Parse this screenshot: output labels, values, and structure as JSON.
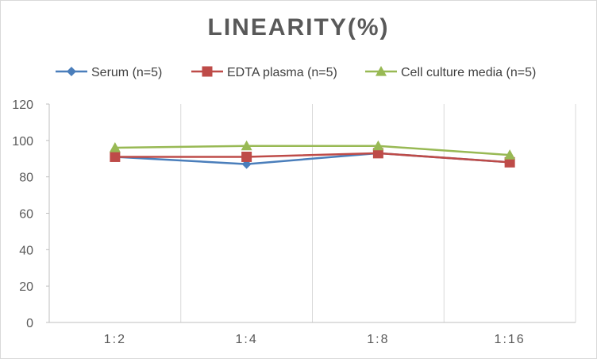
{
  "chart_data": {
    "type": "line",
    "title": "LINEARITY(%)",
    "categories": [
      "1:2",
      "1:4",
      "1:8",
      "1:16"
    ],
    "series": [
      {
        "name": "Serum (n=5)",
        "values": [
          91,
          87,
          93,
          88
        ],
        "color": "#4a7ebb",
        "marker": "diamond"
      },
      {
        "name": "EDTA plasma (n=5)",
        "values": [
          91,
          91,
          93,
          88
        ],
        "color": "#be4b48",
        "marker": "square"
      },
      {
        "name": "Cell culture media (n=5)",
        "values": [
          96,
          97,
          97,
          92
        ],
        "color": "#98b954",
        "marker": "triangle"
      }
    ],
    "xlabel": "",
    "ylabel": "",
    "ylim": [
      0,
      120
    ],
    "yticks": [
      0,
      20,
      40,
      60,
      80,
      100,
      120
    ],
    "grid": "vertical",
    "legend_position": "top"
  }
}
